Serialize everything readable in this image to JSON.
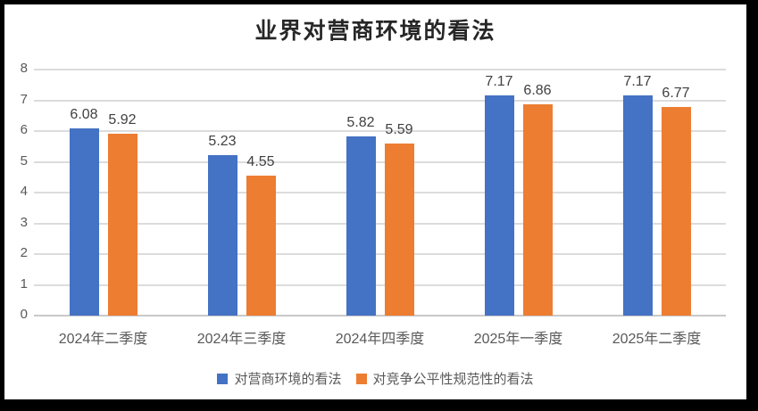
{
  "chart_data": {
    "type": "bar",
    "title": "业界对营商环境的看法",
    "categories": [
      "2024年二季度",
      "2024年三季度",
      "2024年四季度",
      "2025年一季度",
      "2025年二季度"
    ],
    "series": [
      {
        "name": "对营商环境的看法",
        "color": "#4472C4",
        "values": [
          6.08,
          5.23,
          5.82,
          7.17,
          7.17
        ]
      },
      {
        "name": "对竞争公平性规范性的看法",
        "color": "#ED7D31",
        "values": [
          5.92,
          4.55,
          5.59,
          6.86,
          6.77
        ]
      }
    ],
    "data_labels": [
      [
        "6.08",
        "5.23",
        "5.82",
        "7.17",
        "7.17"
      ],
      [
        "5.92",
        "4.55",
        "5.59",
        "6.86",
        "6.77"
      ]
    ],
    "ylim": [
      0,
      8
    ],
    "ytick_step": 1,
    "ytick_labels": [
      "0",
      "1",
      "2",
      "3",
      "4",
      "5",
      "6",
      "7",
      "8"
    ],
    "grid": true,
    "legend_position": "bottom"
  },
  "colors": {
    "series1": "#4472C4",
    "series2": "#ED7D31",
    "gridline": "#DCDCDC",
    "axis_text": "#595959",
    "data_label_text": "#404040",
    "title_text": "#262626",
    "frame_border": "#000000",
    "background": "#FFFFFF"
  }
}
